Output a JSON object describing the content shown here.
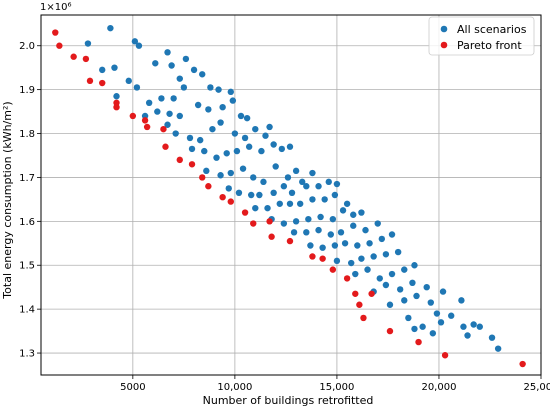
{
  "chart_data": {
    "type": "scatter",
    "xlabel": "Number of buildings retrofitted",
    "ylabel": "Total energy consumption (kWh/m²)",
    "y_multiplier_label": "1×10⁶",
    "xlim": [
      500,
      25000
    ],
    "ylim": [
      1250000,
      2070000
    ],
    "x_ticks": [
      5000,
      10000,
      15000,
      20000,
      25000
    ],
    "x_tick_labels": [
      "5000",
      "10,000",
      "15,000",
      "20,000",
      "25,000"
    ],
    "y_ticks": [
      1300000,
      1400000,
      1500000,
      1600000,
      1700000,
      1800000,
      1900000,
      2000000
    ],
    "y_tick_labels": [
      "1.3",
      "1.4",
      "1.5",
      "1.6",
      "1.7",
      "1.8",
      "1.9",
      "2.0"
    ],
    "grid": true,
    "legend_position": "top-right",
    "series": [
      {
        "name": "All scenarios",
        "color": "#1f77b4",
        "points": [
          [
            2800,
            2005000
          ],
          [
            3900,
            2040000
          ],
          [
            5100,
            2010000
          ],
          [
            3500,
            1945000
          ],
          [
            4100,
            1950000
          ],
          [
            4800,
            1920000
          ],
          [
            5300,
            2000000
          ],
          [
            6100,
            1960000
          ],
          [
            6700,
            1985000
          ],
          [
            6900,
            1955000
          ],
          [
            7600,
            1970000
          ],
          [
            7300,
            1925000
          ],
          [
            8000,
            1945000
          ],
          [
            8400,
            1935000
          ],
          [
            8800,
            1905000
          ],
          [
            9200,
            1900000
          ],
          [
            9800,
            1895000
          ],
          [
            5200,
            1905000
          ],
          [
            5800,
            1870000
          ],
          [
            6400,
            1880000
          ],
          [
            7000,
            1880000
          ],
          [
            7500,
            1905000
          ],
          [
            8200,
            1865000
          ],
          [
            8700,
            1855000
          ],
          [
            9400,
            1860000
          ],
          [
            9900,
            1875000
          ],
          [
            10300,
            1840000
          ],
          [
            10600,
            1835000
          ],
          [
            4200,
            1885000
          ],
          [
            5600,
            1840000
          ],
          [
            6200,
            1850000
          ],
          [
            6700,
            1820000
          ],
          [
            7100,
            1800000
          ],
          [
            7800,
            1790000
          ],
          [
            8300,
            1785000
          ],
          [
            8900,
            1810000
          ],
          [
            9300,
            1825000
          ],
          [
            10000,
            1800000
          ],
          [
            10500,
            1790000
          ],
          [
            11000,
            1810000
          ],
          [
            11500,
            1795000
          ],
          [
            11700,
            1815000
          ],
          [
            6800,
            1845000
          ],
          [
            7300,
            1840000
          ],
          [
            7900,
            1765000
          ],
          [
            8500,
            1760000
          ],
          [
            9100,
            1745000
          ],
          [
            9600,
            1755000
          ],
          [
            10100,
            1760000
          ],
          [
            10700,
            1770000
          ],
          [
            11300,
            1760000
          ],
          [
            11900,
            1775000
          ],
          [
            12300,
            1765000
          ],
          [
            12700,
            1770000
          ],
          [
            8600,
            1715000
          ],
          [
            9300,
            1705000
          ],
          [
            9800,
            1710000
          ],
          [
            10400,
            1720000
          ],
          [
            10900,
            1700000
          ],
          [
            11400,
            1690000
          ],
          [
            12000,
            1725000
          ],
          [
            12600,
            1700000
          ],
          [
            13000,
            1715000
          ],
          [
            13300,
            1690000
          ],
          [
            13800,
            1710000
          ],
          [
            9700,
            1675000
          ],
          [
            10200,
            1665000
          ],
          [
            10800,
            1660000
          ],
          [
            11200,
            1660000
          ],
          [
            11900,
            1665000
          ],
          [
            12400,
            1680000
          ],
          [
            12800,
            1665000
          ],
          [
            13500,
            1680000
          ],
          [
            14100,
            1680000
          ],
          [
            14600,
            1690000
          ],
          [
            15000,
            1685000
          ],
          [
            11000,
            1630000
          ],
          [
            11600,
            1630000
          ],
          [
            12200,
            1640000
          ],
          [
            12700,
            1640000
          ],
          [
            13200,
            1640000
          ],
          [
            13800,
            1650000
          ],
          [
            14400,
            1650000
          ],
          [
            14900,
            1660000
          ],
          [
            15500,
            1640000
          ],
          [
            11800,
            1605000
          ],
          [
            12400,
            1595000
          ],
          [
            13000,
            1600000
          ],
          [
            13600,
            1605000
          ],
          [
            14200,
            1610000
          ],
          [
            14800,
            1605000
          ],
          [
            15300,
            1625000
          ],
          [
            15800,
            1615000
          ],
          [
            16200,
            1620000
          ],
          [
            12900,
            1575000
          ],
          [
            13500,
            1575000
          ],
          [
            14100,
            1580000
          ],
          [
            14700,
            1570000
          ],
          [
            15200,
            1575000
          ],
          [
            15800,
            1590000
          ],
          [
            16400,
            1580000
          ],
          [
            17000,
            1595000
          ],
          [
            13700,
            1545000
          ],
          [
            14300,
            1540000
          ],
          [
            14900,
            1545000
          ],
          [
            15400,
            1550000
          ],
          [
            16000,
            1545000
          ],
          [
            16600,
            1550000
          ],
          [
            17200,
            1560000
          ],
          [
            17700,
            1570000
          ],
          [
            15000,
            1510000
          ],
          [
            15700,
            1505000
          ],
          [
            16200,
            1515000
          ],
          [
            16800,
            1520000
          ],
          [
            17400,
            1525000
          ],
          [
            18000,
            1530000
          ],
          [
            15900,
            1480000
          ],
          [
            16500,
            1490000
          ],
          [
            17100,
            1470000
          ],
          [
            17700,
            1480000
          ],
          [
            18300,
            1490000
          ],
          [
            18800,
            1500000
          ],
          [
            16800,
            1440000
          ],
          [
            17400,
            1455000
          ],
          [
            18100,
            1445000
          ],
          [
            18700,
            1460000
          ],
          [
            19400,
            1450000
          ],
          [
            17600,
            1410000
          ],
          [
            18300,
            1420000
          ],
          [
            18900,
            1430000
          ],
          [
            19600,
            1415000
          ],
          [
            20200,
            1440000
          ],
          [
            18500,
            1380000
          ],
          [
            19200,
            1360000
          ],
          [
            19900,
            1390000
          ],
          [
            20600,
            1385000
          ],
          [
            21100,
            1420000
          ],
          [
            21200,
            1360000
          ],
          [
            20100,
            1370000
          ],
          [
            21400,
            1340000
          ],
          [
            21700,
            1365000
          ],
          [
            22000,
            1360000
          ],
          [
            22600,
            1335000
          ],
          [
            22900,
            1310000
          ],
          [
            18800,
            1355000
          ],
          [
            19700,
            1345000
          ]
        ]
      },
      {
        "name": "Pareto front",
        "color": "#e31a1c",
        "points": [
          [
            1200,
            2030000
          ],
          [
            1400,
            2000000
          ],
          [
            2100,
            1975000
          ],
          [
            2700,
            1970000
          ],
          [
            2900,
            1920000
          ],
          [
            3500,
            1915000
          ],
          [
            4200,
            1870000
          ],
          [
            4200,
            1860000
          ],
          [
            5000,
            1840000
          ],
          [
            5600,
            1830000
          ],
          [
            5700,
            1815000
          ],
          [
            6500,
            1810000
          ],
          [
            6600,
            1770000
          ],
          [
            7300,
            1740000
          ],
          [
            7900,
            1730000
          ],
          [
            8400,
            1700000
          ],
          [
            8700,
            1680000
          ],
          [
            9400,
            1655000
          ],
          [
            9800,
            1645000
          ],
          [
            10500,
            1620000
          ],
          [
            10900,
            1595000
          ],
          [
            11700,
            1600000
          ],
          [
            11800,
            1565000
          ],
          [
            12700,
            1555000
          ],
          [
            13800,
            1520000
          ],
          [
            14300,
            1515000
          ],
          [
            14800,
            1490000
          ],
          [
            15500,
            1470000
          ],
          [
            15900,
            1435000
          ],
          [
            16100,
            1410000
          ],
          [
            16700,
            1435000
          ],
          [
            16300,
            1380000
          ],
          [
            17600,
            1350000
          ],
          [
            19000,
            1325000
          ],
          [
            20300,
            1295000
          ],
          [
            24100,
            1275000
          ]
        ]
      }
    ]
  }
}
